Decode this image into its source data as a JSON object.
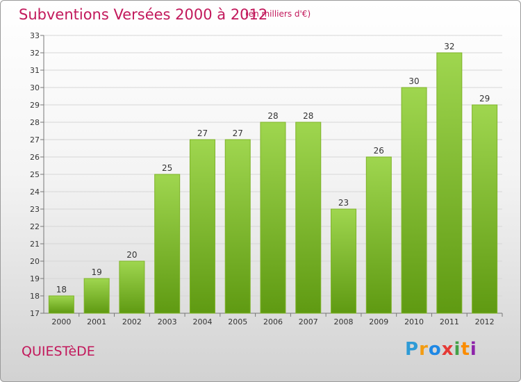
{
  "header": {
    "title": "Subventions Versées 2000 à 2012",
    "subtitle": "(en milliers d'€)"
  },
  "footer": {
    "commune": "QUIESTèDE",
    "logo_text": "Proxiti"
  },
  "colors": {
    "bar_top": "#9fd64f",
    "bar_bottom": "#5f9a12",
    "title": "#c2185b"
  },
  "chart_data": {
    "type": "bar",
    "title": "Subventions Versées 2000 à 2012",
    "subtitle": "(en milliers d'€)",
    "categories": [
      "2000",
      "2001",
      "2002",
      "2003",
      "2004",
      "2005",
      "2006",
      "2007",
      "2008",
      "2009",
      "2010",
      "2011",
      "2012"
    ],
    "values": [
      18,
      19,
      20,
      25,
      27,
      27,
      28,
      28,
      23,
      26,
      30,
      32,
      29
    ],
    "ylim": [
      17,
      33
    ],
    "yticks": [
      17,
      18,
      19,
      20,
      21,
      22,
      23,
      24,
      25,
      26,
      27,
      28,
      29,
      30,
      31,
      32,
      33
    ],
    "grid": true,
    "data_labels": true
  }
}
